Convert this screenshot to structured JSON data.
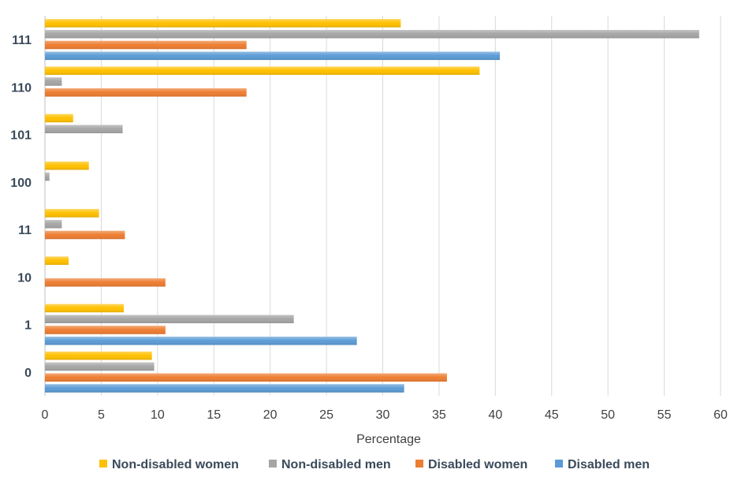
{
  "chart_data": {
    "type": "bar",
    "orientation": "horizontal",
    "categories": [
      "0",
      "1",
      "10",
      "11",
      "100",
      "101",
      "110",
      "111"
    ],
    "series": [
      {
        "name": "Non-disabled women",
        "color": "#FFC000",
        "values": [
          9.5,
          7.0,
          2.1,
          4.8,
          3.9,
          2.5,
          38.6,
          31.6
        ]
      },
      {
        "name": "Non-disabled men",
        "color": "#A5A5A5",
        "values": [
          9.7,
          22.1,
          0,
          1.5,
          0.4,
          6.9,
          1.5,
          58.1
        ]
      },
      {
        "name": "Disabled women",
        "color": "#ED7D31",
        "values": [
          35.7,
          10.7,
          10.7,
          7.1,
          0,
          0,
          17.9,
          17.9
        ]
      },
      {
        "name": "Disabled men",
        "color": "#5B9BD5",
        "values": [
          31.9,
          27.7,
          0,
          0,
          0,
          0,
          0,
          40.4
        ]
      }
    ],
    "xlabel": "Percentage",
    "ylabel": "",
    "xlim": [
      0,
      60
    ],
    "xticks": [
      0,
      5,
      10,
      15,
      20,
      25,
      30,
      35,
      40,
      45,
      50,
      55,
      60
    ],
    "grid": "vertical",
    "legend_position": "bottom",
    "legend_order": [
      "Non-disabled women",
      "Non-disabled men",
      "Disabled women",
      "Disabled men"
    ]
  }
}
